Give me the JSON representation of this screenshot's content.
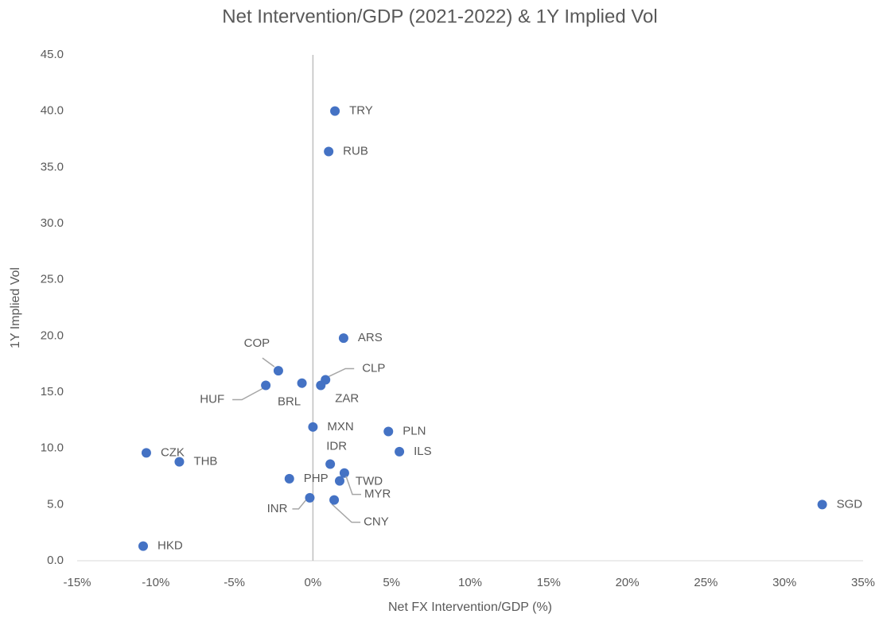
{
  "chart_data": {
    "type": "scatter",
    "title": "Net Intervention/GDP (2021-2022) & 1Y Implied Vol",
    "x_label": "Net FX Intervention/GDP (%)",
    "y_label": "1Y Implied Vol",
    "labels": [
      "TRY",
      "RUB",
      "ARS",
      "COP",
      "CLP",
      "BRL",
      "ZAR",
      "HUF",
      "MXN",
      "PLN",
      "ILS",
      "CZK",
      "THB",
      "IDR",
      "TWD",
      "PHP",
      "MYR",
      "INR",
      "CNY",
      "SGD",
      "HKD"
    ],
    "x": [
      1.4,
      1.0,
      1.95,
      -2.2,
      0.8,
      -0.7,
      0.5,
      -3.0,
      0.0,
      4.8,
      5.5,
      -10.6,
      -8.5,
      1.1,
      2.0,
      -1.5,
      1.7,
      -0.2,
      1.35,
      32.4,
      -10.8
    ],
    "values": [
      40.0,
      36.4,
      19.8,
      16.9,
      16.1,
      15.8,
      15.6,
      15.6,
      11.9,
      11.5,
      9.7,
      9.6,
      8.8,
      8.6,
      7.8,
      7.3,
      7.1,
      5.6,
      5.4,
      5.0,
      1.3
    ],
    "color": "#4472c4",
    "xlim": [
      -15,
      35
    ],
    "xticks": [
      {
        "value": -15,
        "label": "-15%"
      },
      {
        "value": -10,
        "label": "-10%"
      },
      {
        "value": -5,
        "label": "-5%"
      },
      {
        "value": 0,
        "label": "0%"
      },
      {
        "value": 5,
        "label": "5%"
      },
      {
        "value": 10,
        "label": "10%"
      },
      {
        "value": 15,
        "label": "15%"
      },
      {
        "value": 20,
        "label": "20%"
      },
      {
        "value": 25,
        "label": "25%"
      },
      {
        "value": 30,
        "label": "30%"
      },
      {
        "value": 35,
        "label": "35%"
      }
    ],
    "ylim": [
      0,
      45
    ],
    "yticks": [
      {
        "value": 0,
        "label": "0.0"
      },
      {
        "value": 5,
        "label": "5.0"
      },
      {
        "value": 10,
        "label": "10.0"
      },
      {
        "value": 15,
        "label": "15.0"
      },
      {
        "value": 20,
        "label": "20.0"
      },
      {
        "value": 25,
        "label": "25.0"
      },
      {
        "value": 30,
        "label": "30.0"
      },
      {
        "value": 35,
        "label": "35.0"
      },
      {
        "value": 40,
        "label": "40.0"
      },
      {
        "value": 45,
        "label": "45.0"
      }
    ]
  }
}
